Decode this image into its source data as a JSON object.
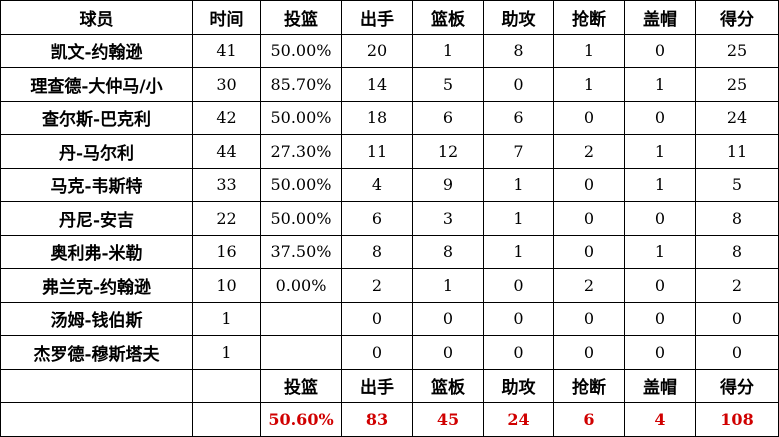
{
  "headers": [
    "球员",
    "时间",
    "投篮",
    "出手",
    "篮板",
    "助攻",
    "抢断",
    "盖帽",
    "得分"
  ],
  "rows": [
    [
      "凯文-约翰逊",
      "41",
      "50.00%",
      "20",
      "1",
      "8",
      "1",
      "0",
      "25"
    ],
    [
      "理查德-大仲马/小",
      "30",
      "85.70%",
      "14",
      "5",
      "0",
      "1",
      "1",
      "25"
    ],
    [
      "查尔斯-巴克利",
      "42",
      "50.00%",
      "18",
      "6",
      "6",
      "0",
      "0",
      "24"
    ],
    [
      "丹-马尔利",
      "44",
      "27.30%",
      "11",
      "12",
      "7",
      "2",
      "1",
      "11"
    ],
    [
      "马克-韦斯特",
      "33",
      "50.00%",
      "4",
      "9",
      "1",
      "0",
      "1",
      "5"
    ],
    [
      "丹尼-安吉",
      "22",
      "50.00%",
      "6",
      "3",
      "1",
      "0",
      "0",
      "8"
    ],
    [
      "奥利弗-米勒",
      "16",
      "37.50%",
      "8",
      "8",
      "1",
      "0",
      "1",
      "8"
    ],
    [
      "弗兰克-约翰逊",
      "10",
      "0.00%",
      "2",
      "1",
      "0",
      "2",
      "0",
      "2"
    ],
    [
      "汤姆-钱伯斯",
      "1",
      "",
      "0",
      "0",
      "0",
      "0",
      "0",
      "0"
    ],
    [
      "杰罗德-穆斯塔夫",
      "1",
      "",
      "0",
      "0",
      "0",
      "0",
      "0",
      "0"
    ]
  ],
  "totals_headers": [
    "",
    "",
    "投篮",
    "出手",
    "篮板",
    "助攻",
    "抢断",
    "盖帽",
    "得分"
  ],
  "totals": [
    "",
    "",
    "50.60%",
    "83",
    "45",
    "24",
    "6",
    "4",
    "108"
  ],
  "colors": {
    "totals_text": "#d00000",
    "border": "#000000"
  }
}
